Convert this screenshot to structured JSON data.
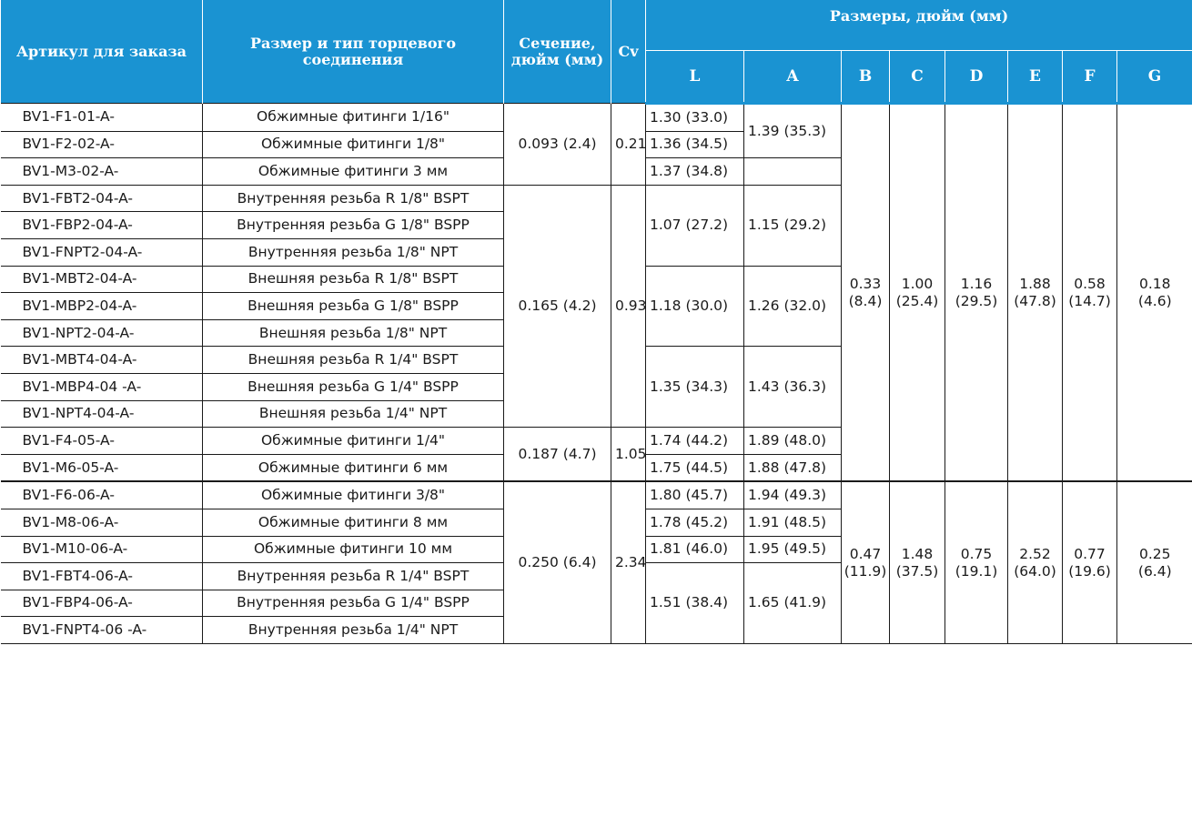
{
  "header": {
    "article": "Артикул для заказа",
    "size_type": "Размер и тип торцевого соединения",
    "section": "Сечение, дюйм (мм)",
    "cv": "Cv",
    "dims": "Размеры, дюйм (мм)",
    "cols": [
      "L",
      "A",
      "B",
      "C",
      "D",
      "E",
      "F",
      "G"
    ]
  },
  "rows": [
    {
      "article": "BV1-F1-01-A-",
      "desc": "Обжимные фитинги 1/16\""
    },
    {
      "article": "BV1-F2-02-A-",
      "desc": "Обжимные фитинги 1/8\""
    },
    {
      "article": "BV1-M3-02-A-",
      "desc": "Обжимные фитинги 3 мм"
    },
    {
      "article": "BV1-FBT2-04-A-",
      "desc": "Внутренняя резьба R 1/8\" BSPT"
    },
    {
      "article": "BV1-FBP2-04-A-",
      "desc": "Внутренняя резьба G 1/8\" BSPP"
    },
    {
      "article": "BV1-FNPT2-04-A-",
      "desc": "Внутренняя резьба 1/8\" NPT"
    },
    {
      "article": "BV1-MBT2-04-A-",
      "desc": "Внешняя резьба R 1/8\" BSPT"
    },
    {
      "article": "BV1-MBP2-04-A-",
      "desc": "Внешняя резьба G 1/8\" BSPP"
    },
    {
      "article": "BV1-NPT2-04-A-",
      "desc": "Внешняя резьба 1/8\" NPT"
    },
    {
      "article": "BV1-MBT4-04-A-",
      "desc": "Внешняя резьба  R 1/4\" BSPT"
    },
    {
      "article": "BV1-MBP4-04 -A-",
      "desc": "Внешняя резьба G 1/4\" BSPP"
    },
    {
      "article": "BV1-NPT4-04-A-",
      "desc": "Внешняя резьба 1/4\" NPT"
    },
    {
      "article": "BV1-F4-05-A-",
      "desc": "Обжимные фитинги 1/4\""
    },
    {
      "article": "BV1-M6-05-A-",
      "desc": "Обжимные фитинги 6 мм"
    },
    {
      "article": "BV1-F6-06-A-",
      "desc": "Обжимные фитинги 3/8\""
    },
    {
      "article": "BV1-M8-06-A-",
      "desc": "Обжимные фитинги 8 мм"
    },
    {
      "article": "BV1-M10-06-A-",
      "desc": "Обжимные фитинги 10 мм"
    },
    {
      "article": "BV1-FBT4-06-A-",
      "desc": "Внутренняя резьба R 1/4\" BSPT"
    },
    {
      "article": "BV1-FBP4-06-A-",
      "desc": "Внутренняя резьба G 1/4\" BSPP"
    },
    {
      "article": "BV1-FNPT4-06 -A-",
      "desc": "Внутренняя резьба 1/4\" NPT"
    }
  ],
  "section": [
    "0.093 (2.4)",
    "0.165 (4.2)",
    "0.187 (4.7)",
    "0.250 (6.4)"
  ],
  "cv": [
    "0.21",
    "0.93",
    "1.05",
    "2.34"
  ],
  "L": [
    "1.30 (33.0)",
    "1.36 (34.5)",
    "1.37 (34.8)",
    "1.07 (27.2)",
    "1.18 (30.0)",
    "1.35 (34.3)",
    "1.74 (44.2)",
    "1.75 (44.5)",
    "1.80 (45.7)",
    "1.78 (45.2)",
    "1.81 (46.0)",
    "1.51 (38.4)"
  ],
  "A": [
    "1.39 (35.3)",
    "1.15 (29.2)",
    "1.26 (32.0)",
    "1.43 (36.3)",
    "1.89 (48.0)",
    "1.88 (47.8)",
    "1.94 (49.3)",
    "1.91 (48.5)",
    "1.95 (49.5)",
    "1.65 (41.9)"
  ],
  "dims_group1": {
    "B": [
      "0.33",
      "(8.4)"
    ],
    "C": [
      "1.00",
      "(25.4)"
    ],
    "D": [
      "1.16",
      "(29.5)"
    ],
    "E": [
      "1.88",
      "(47.8)"
    ],
    "F": [
      "0.58",
      "(14.7)"
    ],
    "G": [
      "0.18",
      "(4.6)"
    ]
  },
  "dims_group2": {
    "B": [
      "0.47",
      "(11.9)"
    ],
    "C": [
      "1.48",
      "(37.5)"
    ],
    "D": [
      "0.75",
      "(19.1)"
    ],
    "E": [
      "2.52",
      "(64.0)"
    ],
    "F": [
      "0.77",
      "(19.6)"
    ],
    "G": [
      "0.25",
      "(6.4)"
    ]
  },
  "colors": {
    "header_bg": "#1a93d2",
    "header_text": "#ffffff",
    "grid": "#1a1a1a"
  }
}
